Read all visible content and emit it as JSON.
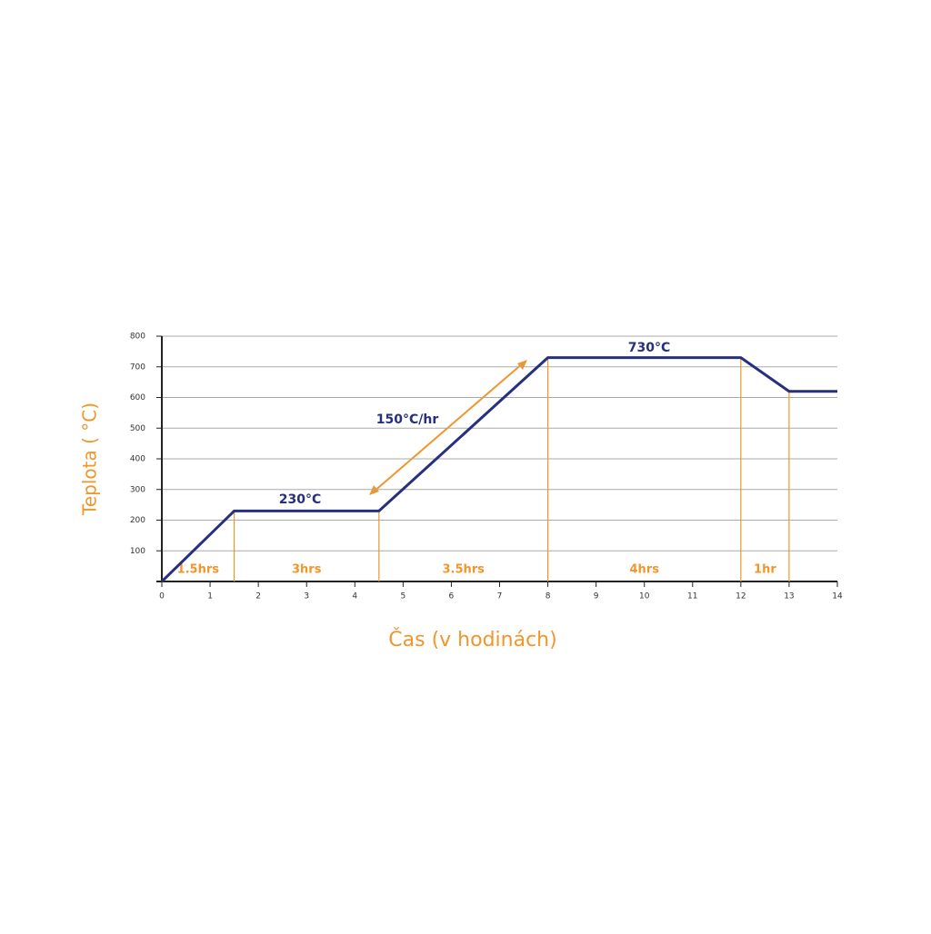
{
  "chart_data": {
    "type": "line",
    "x_label": "Čas (v hodinách)",
    "y_label": "Teplota ( °C)",
    "x": [
      0,
      1.5,
      4.5,
      8,
      12,
      13,
      14
    ],
    "values": [
      0,
      230,
      230,
      730,
      730,
      620,
      620
    ],
    "color": "#27307f",
    "marker_color": "#f0962b",
    "xlim": [
      0,
      14
    ],
    "xticks": [
      0,
      1,
      2,
      3,
      4,
      5,
      6,
      7,
      8,
      9,
      10,
      11,
      12,
      13,
      14
    ],
    "ylim": [
      0,
      800
    ],
    "yticks": [
      100,
      200,
      300,
      400,
      500,
      600,
      700,
      800
    ],
    "grid": true,
    "annotations": [
      "230°C",
      "730°C",
      "150°C/hr"
    ],
    "phase_labels": [
      "1.5hrs",
      "3hrs",
      "3.5hrs",
      "4hrs",
      "1hr"
    ]
  }
}
